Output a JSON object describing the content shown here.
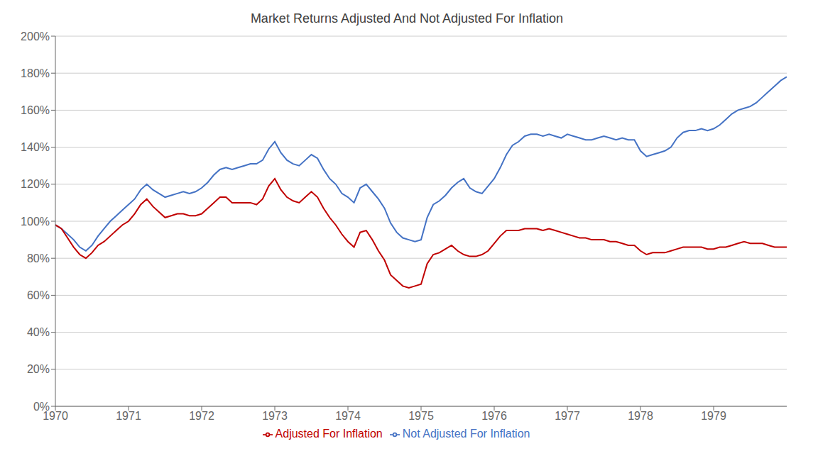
{
  "chart_data": {
    "type": "line",
    "title": "Market Returns Adjusted And Not Adjusted For Inflation",
    "x": [
      1970,
      1970.0833333333,
      1970.1666666667,
      1970.25,
      1970.3333333333,
      1970.4166666667,
      1970.5,
      1970.5833333333,
      1970.6666666667,
      1970.75,
      1970.8333333333,
      1970.9166666667,
      1971,
      1971.0833333333,
      1971.1666666667,
      1971.25,
      1971.3333333333,
      1971.4166666667,
      1971.5,
      1971.5833333333,
      1971.6666666667,
      1971.75,
      1971.8333333333,
      1971.9166666667,
      1972,
      1972.0833333333,
      1972.1666666667,
      1972.25,
      1972.3333333333,
      1972.4166666667,
      1972.5,
      1972.5833333333,
      1972.6666666667,
      1972.75,
      1972.8333333333,
      1972.9166666667,
      1973,
      1973.0833333333,
      1973.1666666667,
      1973.25,
      1973.3333333333,
      1973.4166666667,
      1973.5,
      1973.5833333333,
      1973.6666666667,
      1973.75,
      1973.8333333333,
      1973.9166666667,
      1974,
      1974.0833333333,
      1974.1666666667,
      1974.25,
      1974.3333333333,
      1974.4166666667,
      1974.5,
      1974.5833333333,
      1974.6666666667,
      1974.75,
      1974.8333333333,
      1974.9166666667,
      1975,
      1975.0833333333,
      1975.1666666667,
      1975.25,
      1975.3333333333,
      1975.4166666667,
      1975.5,
      1975.5833333333,
      1975.6666666667,
      1975.75,
      1975.8333333333,
      1975.9166666667,
      1976,
      1976.0833333333,
      1976.1666666667,
      1976.25,
      1976.3333333333,
      1976.4166666667,
      1976.5,
      1976.5833333333,
      1976.6666666667,
      1976.75,
      1976.8333333333,
      1976.9166666667,
      1977,
      1977.0833333333,
      1977.1666666667,
      1977.25,
      1977.3333333333,
      1977.4166666667,
      1977.5,
      1977.5833333333,
      1977.6666666667,
      1977.75,
      1977.8333333333,
      1977.9166666667,
      1978,
      1978.0833333333,
      1978.1666666667,
      1978.25,
      1978.3333333333,
      1978.4166666667,
      1978.5,
      1978.5833333333,
      1978.6666666667,
      1978.75,
      1978.8333333333,
      1978.9166666667,
      1979,
      1979.0833333333,
      1979.1666666667,
      1979.25,
      1979.3333333333,
      1979.4166666667,
      1979.5,
      1979.5833333333,
      1979.6666666667,
      1979.75,
      1979.8333333333,
      1979.9166666667,
      1980
    ],
    "series": [
      {
        "name": "Not Adjusted For Inflation",
        "color": "#4472C4",
        "values": [
          0.98,
          0.96,
          0.93,
          0.9,
          0.86,
          0.84,
          0.87,
          0.92,
          0.96,
          1.0,
          1.03,
          1.06,
          1.09,
          1.12,
          1.17,
          1.2,
          1.17,
          1.15,
          1.13,
          1.14,
          1.15,
          1.16,
          1.15,
          1.16,
          1.18,
          1.21,
          1.25,
          1.28,
          1.29,
          1.28,
          1.29,
          1.3,
          1.31,
          1.31,
          1.33,
          1.39,
          1.43,
          1.37,
          1.33,
          1.31,
          1.3,
          1.33,
          1.36,
          1.34,
          1.28,
          1.23,
          1.2,
          1.15,
          1.13,
          1.1,
          1.18,
          1.2,
          1.16,
          1.12,
          1.07,
          0.99,
          0.94,
          0.91,
          0.9,
          0.89,
          0.9,
          1.02,
          1.09,
          1.11,
          1.14,
          1.18,
          1.21,
          1.23,
          1.18,
          1.16,
          1.15,
          1.19,
          1.23,
          1.29,
          1.36,
          1.41,
          1.43,
          1.46,
          1.47,
          1.47,
          1.46,
          1.47,
          1.46,
          1.45,
          1.47,
          1.46,
          1.45,
          1.44,
          1.44,
          1.45,
          1.46,
          1.45,
          1.44,
          1.45,
          1.44,
          1.44,
          1.38,
          1.35,
          1.36,
          1.37,
          1.38,
          1.4,
          1.45,
          1.48,
          1.49,
          1.49,
          1.5,
          1.49,
          1.5,
          1.52,
          1.55,
          1.58,
          1.6,
          1.61,
          1.62,
          1.64,
          1.67,
          1.7,
          1.73,
          1.76,
          1.78
        ]
      },
      {
        "name": "Adjusted For Inflation",
        "color": "#C00000",
        "values": [
          0.98,
          0.96,
          0.91,
          0.86,
          0.82,
          0.8,
          0.83,
          0.87,
          0.89,
          0.92,
          0.95,
          0.98,
          1.0,
          1.04,
          1.09,
          1.12,
          1.08,
          1.05,
          1.02,
          1.03,
          1.04,
          1.04,
          1.03,
          1.03,
          1.04,
          1.07,
          1.1,
          1.13,
          1.13,
          1.1,
          1.1,
          1.1,
          1.1,
          1.09,
          1.12,
          1.19,
          1.23,
          1.17,
          1.13,
          1.11,
          1.1,
          1.13,
          1.16,
          1.13,
          1.07,
          1.02,
          0.98,
          0.93,
          0.89,
          0.86,
          0.94,
          0.95,
          0.9,
          0.84,
          0.79,
          0.71,
          0.68,
          0.65,
          0.64,
          0.65,
          0.66,
          0.77,
          0.82,
          0.83,
          0.85,
          0.87,
          0.84,
          0.82,
          0.81,
          0.81,
          0.82,
          0.84,
          0.88,
          0.92,
          0.95,
          0.95,
          0.95,
          0.96,
          0.96,
          0.96,
          0.95,
          0.96,
          0.95,
          0.94,
          0.93,
          0.92,
          0.91,
          0.91,
          0.9,
          0.9,
          0.9,
          0.89,
          0.89,
          0.88,
          0.87,
          0.87,
          0.84,
          0.82,
          0.83,
          0.83,
          0.83,
          0.84,
          0.85,
          0.86,
          0.86,
          0.86,
          0.86,
          0.85,
          0.85,
          0.86,
          0.86,
          0.87,
          0.88,
          0.89,
          0.88,
          0.88,
          0.88,
          0.87,
          0.86,
          0.86,
          0.86
        ]
      }
    ],
    "xlim": [
      1970,
      1980
    ],
    "xticks": [
      1970,
      1971,
      1972,
      1973,
      1974,
      1975,
      1976,
      1977,
      1978,
      1979
    ],
    "ylim": [
      0,
      2
    ],
    "yticks": [
      {
        "value": 0,
        "label": "0%"
      },
      {
        "value": 0.2,
        "label": "20%"
      },
      {
        "value": 0.4,
        "label": "40%"
      },
      {
        "value": 0.6,
        "label": "60%"
      },
      {
        "value": 0.8,
        "label": "80%"
      },
      {
        "value": 1,
        "label": "100%"
      },
      {
        "value": 1.2,
        "label": "120%"
      },
      {
        "value": 1.4,
        "label": "140%"
      },
      {
        "value": 1.6,
        "label": "160%"
      },
      {
        "value": 1.8,
        "label": "180%"
      },
      {
        "value": 2,
        "label": "200%"
      }
    ],
    "grid": true,
    "legend": "bottom"
  }
}
